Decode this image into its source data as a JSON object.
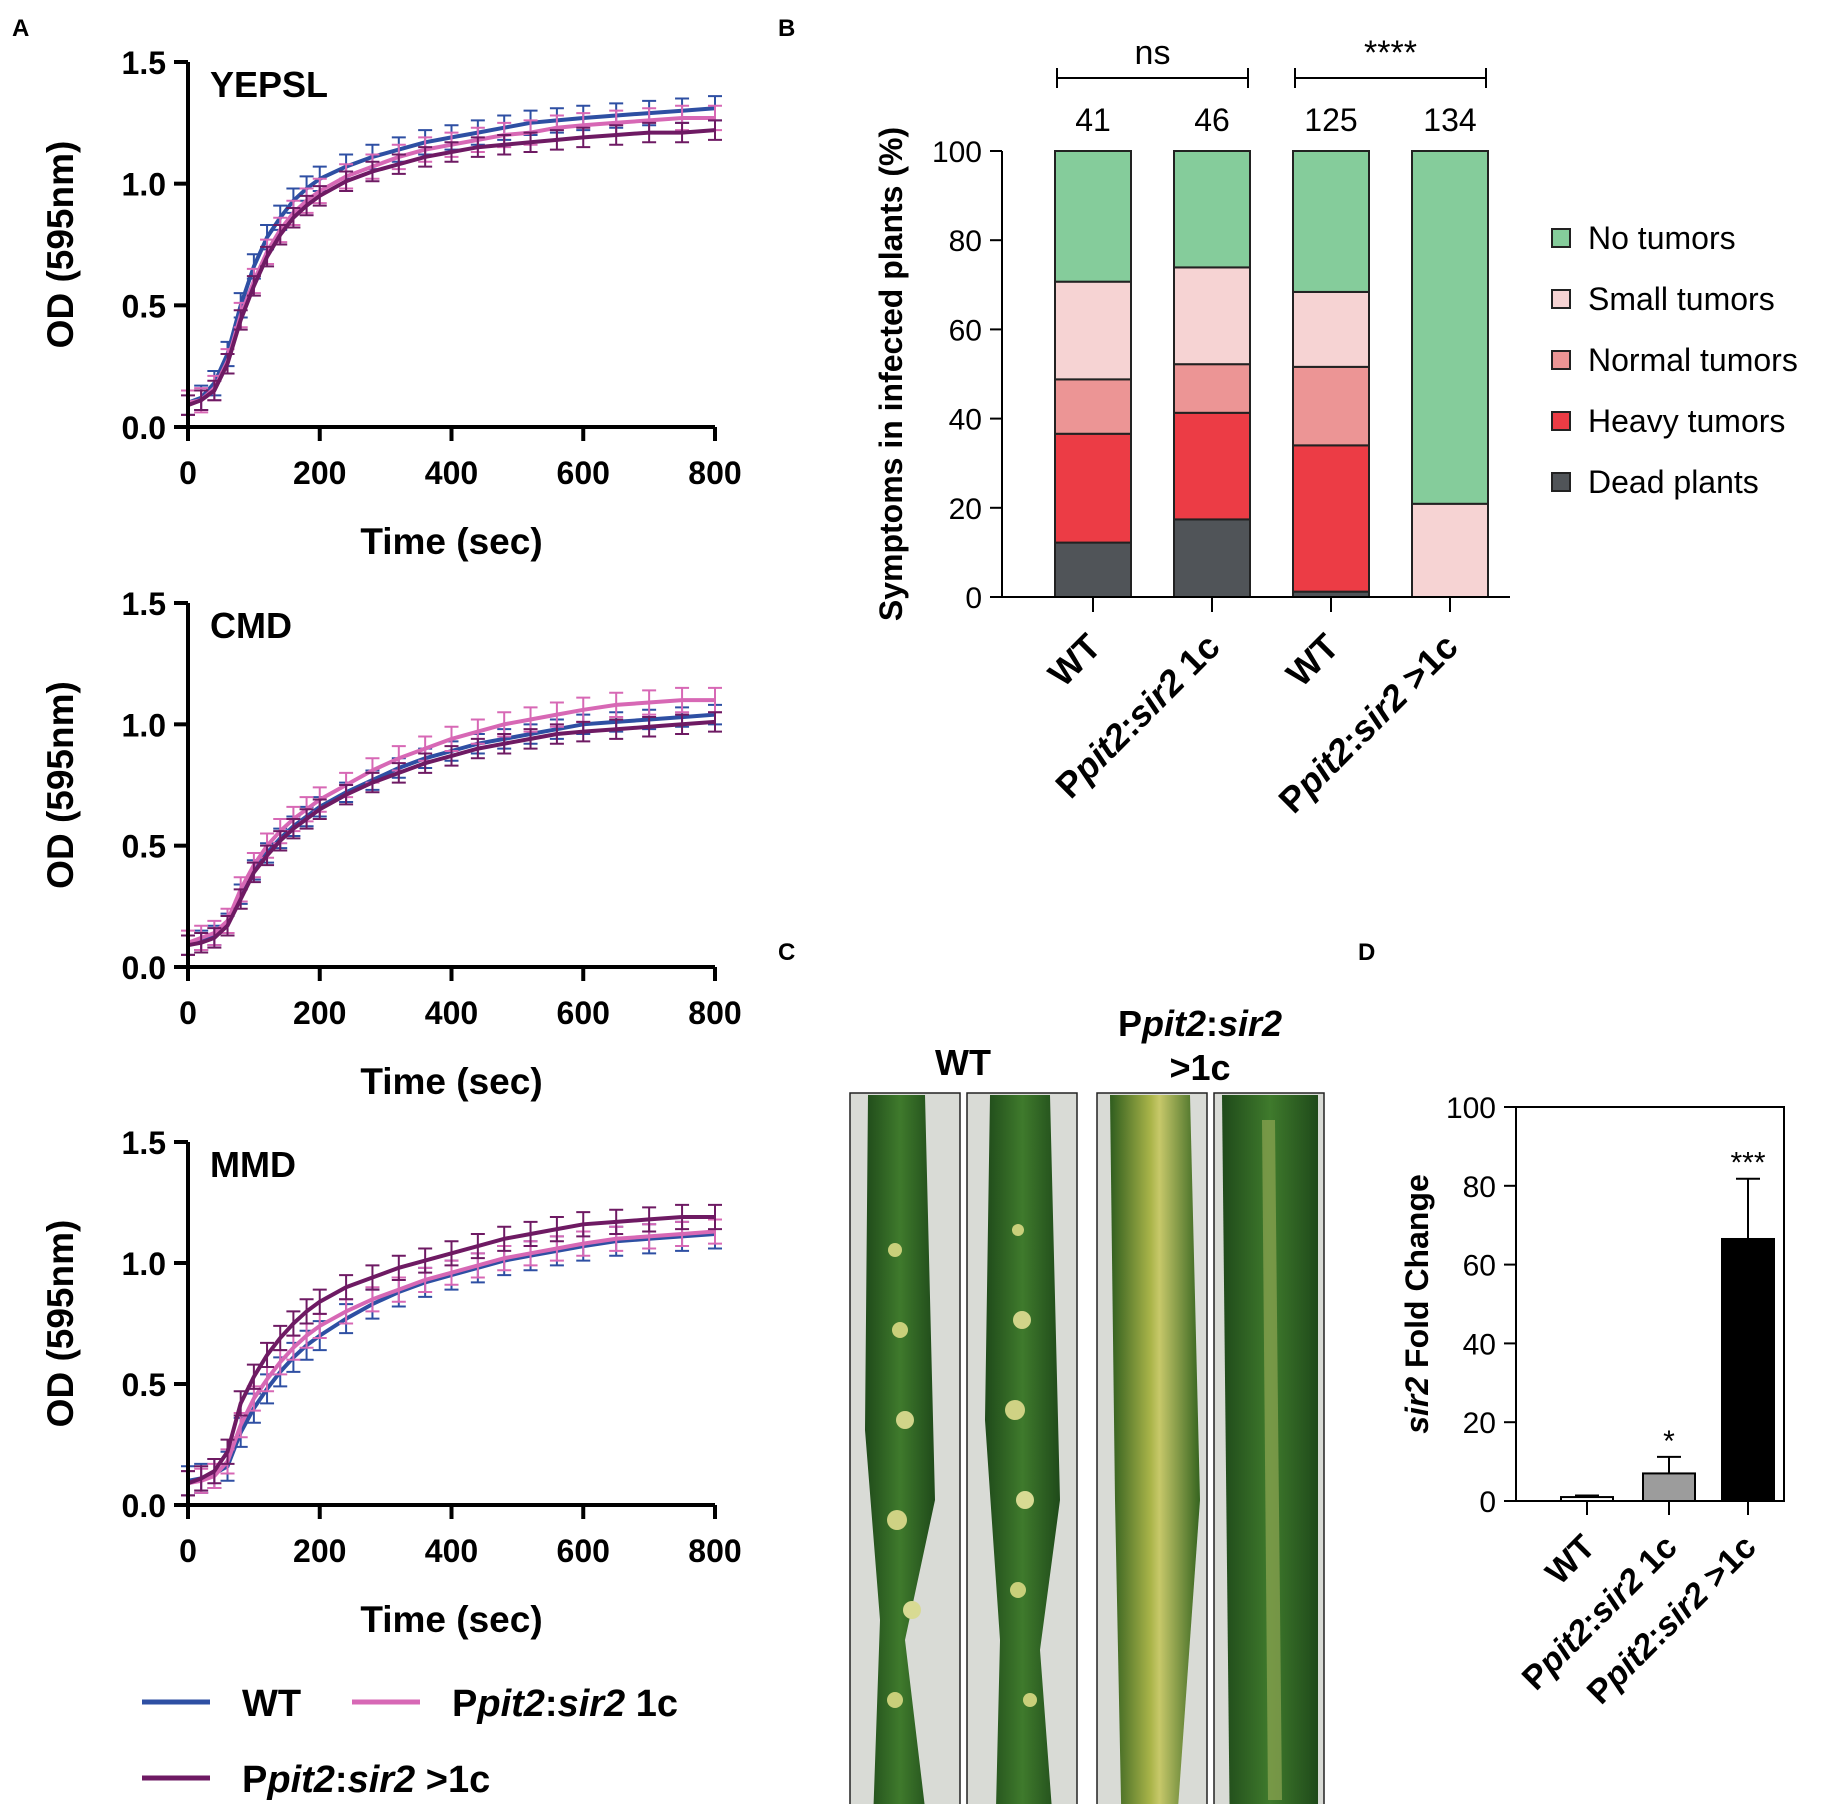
{
  "panel_labels": {
    "a": "A",
    "b": "B",
    "c": "C",
    "d": "D"
  },
  "colors": {
    "wt": "#2e4fa3",
    "c1": "#d768b5",
    "cN": "#6e1a63",
    "no_tumors": "#85cc9b",
    "small_tumors": "#f6d3d3",
    "normal_tumors": "#ec9595",
    "heavy_tumors": "#ec3c45",
    "dead_plants": "#505458",
    "bar_wt": "#ffffff",
    "bar_c1": "#9c9c9c",
    "bar_cN": "#000000"
  },
  "legend_a": {
    "wt": "WT",
    "c1_pre": "P",
    "c1_ital": "pit2",
    "c1_sep": ":",
    "c1_ital2": "sir2",
    "c1_suf": " 1c",
    "cN_pre": "P",
    "cN_ital": "pit2",
    "cN_sep": ":",
    "cN_ital2": "sir2",
    "cN_suf": " >1c"
  },
  "panel_c": {
    "wt_label": "WT",
    "mut_line1_pre": "P",
    "mut_line1_ital": "pit2",
    "mut_line1_sep": ":",
    "mut_line1_ital2": "sir2",
    "mut_line2": ">1c"
  },
  "chart_data": [
    {
      "id": "growth-yepsl",
      "type": "line",
      "title": "YEPSL",
      "xlabel": "Time (sec)",
      "ylabel": "OD (595nm)",
      "xlim": [
        0,
        800
      ],
      "ylim": [
        0,
        1.5
      ],
      "xticks": [
        "0",
        "200",
        "400",
        "600",
        "800"
      ],
      "xtick_values": [
        0,
        200,
        400,
        600,
        800
      ],
      "yticks": [
        "0.0",
        "0.5",
        "1.0",
        "1.5"
      ],
      "ytick_values": [
        0,
        0.5,
        1.0,
        1.5
      ],
      "x": [
        0,
        20,
        40,
        60,
        80,
        100,
        120,
        140,
        160,
        180,
        200,
        240,
        280,
        320,
        360,
        400,
        440,
        480,
        520,
        560,
        600,
        650,
        700,
        750,
        800
      ],
      "series": [
        {
          "name": "WT",
          "key": "wt",
          "err": 0.05,
          "values": [
            0.1,
            0.12,
            0.18,
            0.3,
            0.5,
            0.66,
            0.78,
            0.86,
            0.93,
            0.98,
            1.02,
            1.07,
            1.11,
            1.14,
            1.17,
            1.19,
            1.21,
            1.23,
            1.25,
            1.26,
            1.27,
            1.28,
            1.29,
            1.3,
            1.31
          ]
        },
        {
          "name": "Ppit2:sir2 1c",
          "key": "c1",
          "err": 0.05,
          "values": [
            0.1,
            0.11,
            0.16,
            0.27,
            0.46,
            0.6,
            0.72,
            0.81,
            0.88,
            0.93,
            0.97,
            1.03,
            1.07,
            1.11,
            1.14,
            1.16,
            1.18,
            1.2,
            1.21,
            1.23,
            1.24,
            1.25,
            1.26,
            1.27,
            1.27
          ]
        },
        {
          "name": "Ppit2:sir2 >1c",
          "key": "cN",
          "err": 0.04,
          "values": [
            0.09,
            0.11,
            0.15,
            0.26,
            0.44,
            0.58,
            0.7,
            0.79,
            0.86,
            0.91,
            0.95,
            1.01,
            1.05,
            1.08,
            1.11,
            1.13,
            1.15,
            1.16,
            1.17,
            1.18,
            1.19,
            1.2,
            1.21,
            1.21,
            1.22
          ]
        }
      ]
    },
    {
      "id": "growth-cmd",
      "type": "line",
      "title": "CMD",
      "xlabel": "Time (sec)",
      "ylabel": "OD (595nm)",
      "xlim": [
        0,
        800
      ],
      "ylim": [
        0,
        1.5
      ],
      "xticks": [
        "0",
        "200",
        "400",
        "600",
        "800"
      ],
      "xtick_values": [
        0,
        200,
        400,
        600,
        800
      ],
      "yticks": [
        "0.0",
        "0.5",
        "1.0",
        "1.5"
      ],
      "ytick_values": [
        0,
        0.5,
        1.0,
        1.5
      ],
      "x": [
        0,
        20,
        40,
        60,
        80,
        100,
        120,
        140,
        160,
        180,
        200,
        240,
        280,
        320,
        360,
        400,
        440,
        480,
        520,
        560,
        600,
        650,
        700,
        750,
        800
      ],
      "series": [
        {
          "name": "WT",
          "key": "wt",
          "err": 0.04,
          "values": [
            0.09,
            0.11,
            0.13,
            0.18,
            0.3,
            0.4,
            0.47,
            0.53,
            0.58,
            0.62,
            0.66,
            0.72,
            0.77,
            0.82,
            0.86,
            0.89,
            0.92,
            0.94,
            0.96,
            0.98,
            1.0,
            1.01,
            1.02,
            1.03,
            1.04
          ]
        },
        {
          "name": "Ppit2:sir2 1c",
          "key": "c1",
          "err": 0.05,
          "values": [
            0.1,
            0.12,
            0.14,
            0.19,
            0.32,
            0.42,
            0.5,
            0.56,
            0.61,
            0.65,
            0.69,
            0.75,
            0.81,
            0.86,
            0.9,
            0.94,
            0.97,
            1.0,
            1.02,
            1.04,
            1.06,
            1.08,
            1.09,
            1.1,
            1.1
          ]
        },
        {
          "name": "Ppit2:sir2 >1c",
          "key": "cN",
          "err": 0.04,
          "values": [
            0.09,
            0.1,
            0.12,
            0.17,
            0.28,
            0.39,
            0.46,
            0.52,
            0.57,
            0.61,
            0.65,
            0.71,
            0.76,
            0.8,
            0.84,
            0.87,
            0.9,
            0.92,
            0.94,
            0.96,
            0.97,
            0.98,
            0.99,
            1.0,
            1.01
          ]
        }
      ]
    },
    {
      "id": "growth-mmd",
      "type": "line",
      "title": "MMD",
      "xlabel": "Time (sec)",
      "ylabel": "OD (595nm)",
      "xlim": [
        0,
        800
      ],
      "ylim": [
        0,
        1.5
      ],
      "xticks": [
        "0",
        "200",
        "400",
        "600",
        "800"
      ],
      "xtick_values": [
        0,
        200,
        400,
        600,
        800
      ],
      "yticks": [
        "0.0",
        "0.5",
        "1.0",
        "1.5"
      ],
      "ytick_values": [
        0,
        0.5,
        1.0,
        1.5
      ],
      "x": [
        0,
        20,
        40,
        60,
        80,
        100,
        120,
        140,
        160,
        180,
        200,
        240,
        280,
        320,
        360,
        400,
        440,
        480,
        520,
        560,
        600,
        650,
        700,
        750,
        800
      ],
      "series": [
        {
          "name": "WT",
          "key": "wt",
          "err": 0.06,
          "values": [
            0.1,
            0.11,
            0.13,
            0.16,
            0.3,
            0.4,
            0.48,
            0.55,
            0.61,
            0.66,
            0.7,
            0.77,
            0.83,
            0.88,
            0.92,
            0.95,
            0.98,
            1.01,
            1.03,
            1.05,
            1.07,
            1.09,
            1.1,
            1.11,
            1.12
          ]
        },
        {
          "name": "Ppit2:sir2 1c",
          "key": "c1",
          "err": 0.05,
          "values": [
            0.09,
            0.1,
            0.12,
            0.18,
            0.33,
            0.44,
            0.52,
            0.59,
            0.65,
            0.7,
            0.74,
            0.8,
            0.85,
            0.89,
            0.93,
            0.96,
            0.99,
            1.02,
            1.04,
            1.06,
            1.08,
            1.1,
            1.11,
            1.12,
            1.13
          ]
        },
        {
          "name": "Ppit2:sir2 >1c",
          "key": "cN",
          "err": 0.05,
          "values": [
            0.09,
            0.11,
            0.14,
            0.22,
            0.42,
            0.53,
            0.62,
            0.69,
            0.75,
            0.8,
            0.84,
            0.9,
            0.94,
            0.98,
            1.01,
            1.04,
            1.07,
            1.1,
            1.12,
            1.14,
            1.16,
            1.17,
            1.18,
            1.19,
            1.19
          ]
        }
      ]
    },
    {
      "id": "symptoms",
      "type": "bar",
      "stacked": true,
      "ylabel": "Symptoms in infected plants (%)",
      "ylim": [
        0,
        100
      ],
      "yticks": [
        "0",
        "20",
        "40",
        "60",
        "80",
        "100"
      ],
      "ytick_values": [
        0,
        20,
        40,
        60,
        80,
        100
      ],
      "categories": [
        {
          "pre": "",
          "ital": "",
          "sep": "",
          "ital2": "",
          "suf": "WT"
        },
        {
          "pre": "P",
          "ital": "pit2",
          "sep": ":",
          "ital2": "sir2",
          "suf": " 1c"
        },
        {
          "pre": "",
          "ital": "",
          "sep": "",
          "ital2": "",
          "suf": "WT"
        },
        {
          "pre": "P",
          "ital": "pit2",
          "sep": ":",
          "ital2": "sir2",
          "suf": " >1c"
        }
      ],
      "n_labels": [
        "41",
        "46",
        "125",
        "134"
      ],
      "significance": [
        {
          "from": 0,
          "to": 1,
          "label": "ns"
        },
        {
          "from": 2,
          "to": 3,
          "label": "****"
        }
      ],
      "series": [
        {
          "name": "Dead plants",
          "key": "dead_plants",
          "values": [
            12.2,
            17.4,
            1.2,
            0
          ]
        },
        {
          "name": "Heavy tumors",
          "key": "heavy_tumors",
          "values": [
            24.4,
            23.9,
            32.8,
            0
          ]
        },
        {
          "name": "Normal tumors",
          "key": "normal_tumors",
          "values": [
            12.2,
            10.9,
            17.6,
            0
          ]
        },
        {
          "name": "Small tumors",
          "key": "small_tumors",
          "values": [
            21.9,
            21.7,
            16.8,
            20.9
          ]
        },
        {
          "name": "No tumors",
          "key": "no_tumors",
          "values": [
            29.3,
            26.1,
            31.6,
            79.1
          ]
        }
      ],
      "legend_order": [
        "No tumors",
        "Small tumors",
        "Normal tumors",
        "Heavy tumors",
        "Dead plants"
      ]
    },
    {
      "id": "fold-change",
      "type": "bar",
      "ylabel_ital": "sir2",
      "ylabel_rest": " Fold Change",
      "ylim": [
        0,
        100
      ],
      "yticks": [
        "0",
        "20",
        "40",
        "60",
        "80",
        "100"
      ],
      "ytick_values": [
        0,
        20,
        40,
        60,
        80,
        100
      ],
      "categories": [
        {
          "pre": "",
          "ital": "",
          "sep": "",
          "ital2": "",
          "suf": "WT"
        },
        {
          "pre": "P",
          "ital": "pit2",
          "sep": ":",
          "ital2": "sir2",
          "suf": " 1c"
        },
        {
          "pre": "P",
          "ital": "pit2",
          "sep": ":",
          "ital2": "sir2",
          "suf": " >1c"
        }
      ],
      "values": [
        1,
        7,
        66.5
      ],
      "errors": [
        0.4,
        4.2,
        15.3
      ],
      "annotations": [
        "",
        "*",
        "***"
      ],
      "bar_keys": [
        "bar_wt",
        "bar_c1",
        "bar_cN"
      ]
    }
  ]
}
